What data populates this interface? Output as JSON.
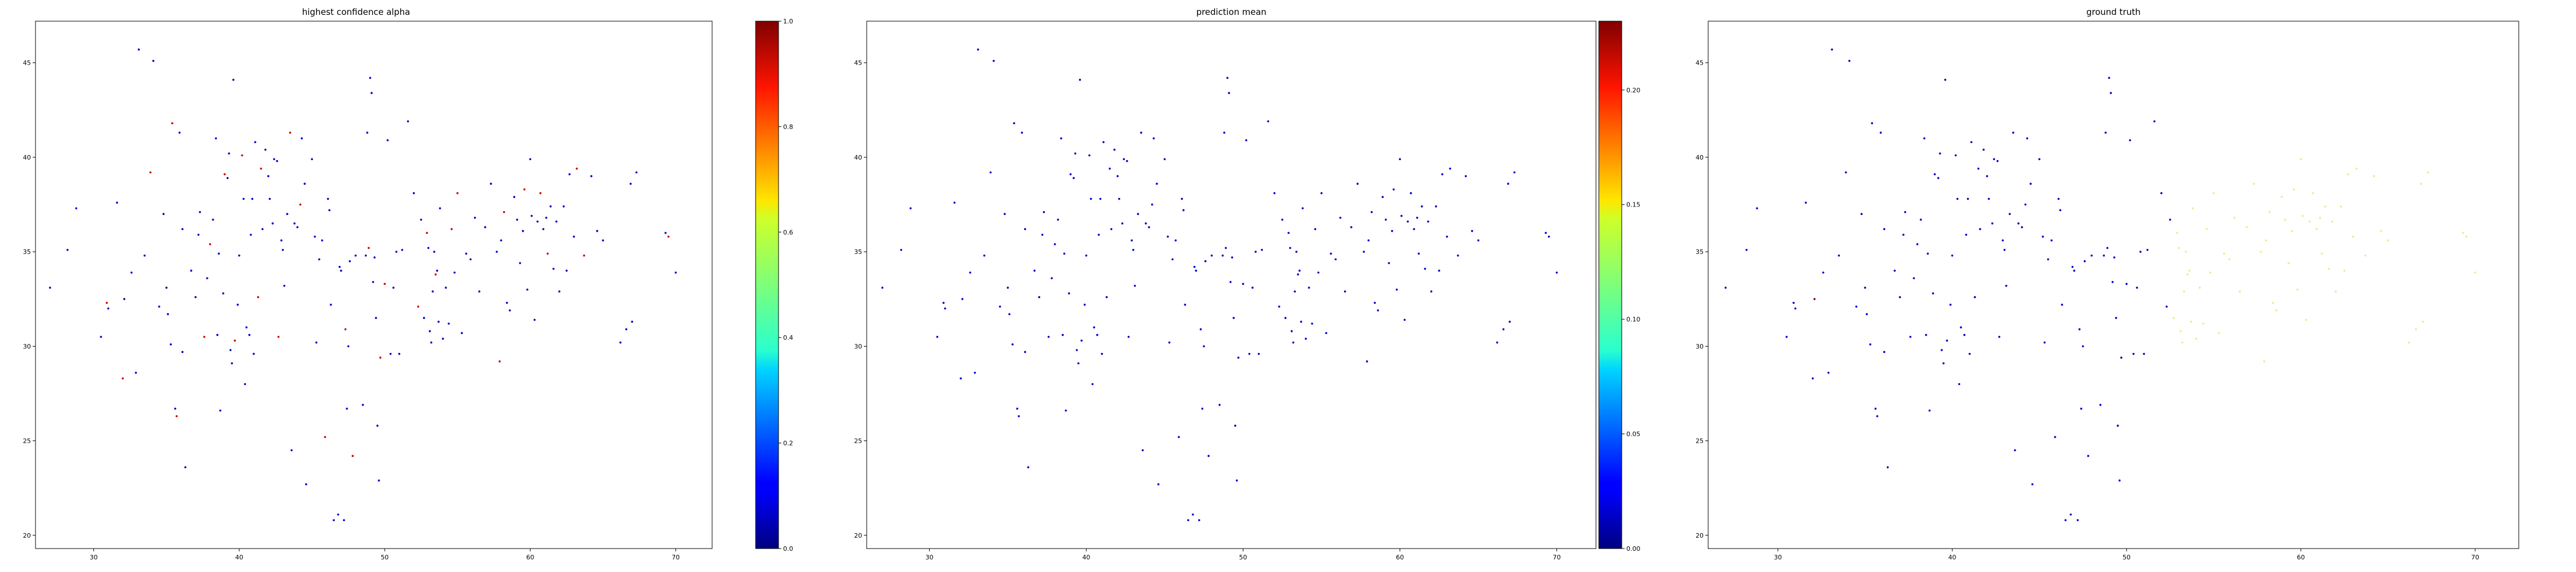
{
  "chart_data": [
    {
      "type": "scatter",
      "title": "highest confidence alpha",
      "xlabel": "",
      "ylabel": "",
      "xlim": [
        26,
        72.5
      ],
      "ylim": [
        19.3,
        47.2
      ],
      "xticks": [
        "30",
        "40",
        "50",
        "60",
        "70"
      ],
      "yticks": [
        "20",
        "25",
        "30",
        "35",
        "40",
        "45"
      ],
      "grid": false,
      "colormap": "jet",
      "colorbar": {
        "min": 0.0,
        "max": 1.0,
        "ticks": [
          "0.0",
          "0.2",
          "0.4",
          "0.6",
          "0.8",
          "1.0"
        ]
      },
      "series": [
        {
          "points": [
            [
              27.0,
              33.1
            ],
            [
              28.2,
              35.1
            ],
            [
              28.8,
              37.3
            ],
            [
              30.5,
              30.5
            ],
            [
              30.9,
              32.3
            ],
            [
              31.0,
              32.0
            ],
            [
              31.6,
              37.6
            ],
            [
              32.0,
              28.3
            ],
            [
              32.1,
              32.5
            ],
            [
              32.6,
              33.9
            ],
            [
              32.9,
              28.6
            ],
            [
              33.1,
              45.7
            ],
            [
              33.5,
              34.8
            ],
            [
              33.9,
              39.2
            ],
            [
              34.1,
              45.1
            ],
            [
              34.5,
              32.1
            ],
            [
              34.8,
              37.0
            ],
            [
              35.0,
              33.1
            ],
            [
              35.1,
              31.7
            ],
            [
              35.3,
              30.1
            ],
            [
              35.4,
              41.8
            ],
            [
              35.6,
              26.7
            ],
            [
              35.7,
              26.3
            ],
            [
              35.9,
              41.3
            ],
            [
              36.1,
              36.2
            ],
            [
              36.1,
              29.7
            ],
            [
              36.3,
              23.6
            ],
            [
              36.7,
              34.0
            ],
            [
              37.0,
              32.6
            ],
            [
              37.2,
              35.9
            ],
            [
              37.3,
              37.1
            ],
            [
              37.6,
              30.5
            ],
            [
              37.8,
              33.6
            ],
            [
              38.0,
              35.4
            ],
            [
              38.2,
              36.7
            ],
            [
              38.4,
              41.0
            ],
            [
              38.5,
              30.6
            ],
            [
              38.6,
              34.9
            ],
            [
              38.7,
              26.6
            ],
            [
              38.9,
              32.8
            ],
            [
              39.0,
              39.1
            ],
            [
              39.2,
              38.9
            ],
            [
              39.3,
              40.2
            ],
            [
              39.4,
              29.8
            ],
            [
              39.5,
              29.1
            ],
            [
              39.6,
              44.1
            ],
            [
              39.7,
              30.3
            ],
            [
              39.9,
              32.2
            ],
            [
              40.0,
              34.8
            ],
            [
              40.2,
              40.1
            ],
            [
              40.3,
              37.8
            ],
            [
              40.4,
              28.0
            ],
            [
              40.5,
              31.0
            ],
            [
              40.7,
              30.6
            ],
            [
              40.8,
              35.9
            ],
            [
              40.9,
              37.8
            ],
            [
              41.0,
              29.6
            ],
            [
              41.1,
              40.8
            ],
            [
              41.3,
              32.6
            ],
            [
              41.5,
              39.4
            ],
            [
              41.6,
              36.2
            ],
            [
              41.8,
              40.4
            ],
            [
              42.0,
              39.0
            ],
            [
              42.1,
              37.8
            ],
            [
              42.3,
              36.5
            ],
            [
              42.4,
              39.9
            ],
            [
              42.6,
              39.8
            ],
            [
              42.7,
              30.5
            ],
            [
              42.9,
              35.6
            ],
            [
              43.0,
              35.1
            ],
            [
              43.1,
              33.2
            ],
            [
              43.3,
              37.0
            ],
            [
              43.5,
              41.3
            ],
            [
              43.6,
              24.5
            ],
            [
              43.8,
              36.5
            ],
            [
              44.0,
              36.3
            ],
            [
              44.2,
              37.5
            ],
            [
              44.3,
              41.0
            ],
            [
              44.5,
              38.6
            ],
            [
              44.6,
              22.7
            ],
            [
              45.0,
              39.9
            ],
            [
              45.2,
              35.8
            ],
            [
              45.3,
              30.2
            ],
            [
              45.5,
              34.6
            ],
            [
              45.7,
              35.6
            ],
            [
              45.9,
              25.2
            ],
            [
              46.1,
              37.8
            ],
            [
              46.2,
              37.2
            ],
            [
              46.3,
              32.2
            ],
            [
              46.5,
              20.8
            ],
            [
              46.8,
              21.1
            ],
            [
              46.9,
              34.2
            ],
            [
              47.0,
              34.0
            ],
            [
              47.2,
              20.8
            ],
            [
              47.3,
              30.9
            ],
            [
              47.4,
              26.7
            ],
            [
              47.5,
              30.0
            ],
            [
              47.6,
              34.5
            ],
            [
              47.8,
              24.2
            ],
            [
              48.0,
              34.8
            ],
            [
              48.5,
              26.9
            ],
            [
              48.7,
              34.8
            ],
            [
              48.8,
              41.3
            ],
            [
              48.9,
              35.2
            ],
            [
              49.0,
              44.2
            ],
            [
              49.1,
              43.4
            ],
            [
              49.2,
              33.4
            ],
            [
              49.3,
              34.7
            ],
            [
              49.4,
              31.5
            ],
            [
              49.5,
              25.8
            ],
            [
              49.6,
              22.9
            ],
            [
              49.7,
              29.4
            ],
            [
              50.0,
              33.3
            ],
            [
              50.2,
              40.9
            ],
            [
              50.4,
              29.6
            ],
            [
              50.6,
              33.1
            ],
            [
              50.8,
              35.0
            ],
            [
              51.0,
              29.6
            ],
            [
              51.2,
              35.1
            ],
            [
              51.6,
              41.9
            ],
            [
              52.0,
              38.1
            ],
            [
              52.3,
              32.1
            ],
            [
              52.5,
              36.7
            ],
            [
              52.7,
              31.5
            ],
            [
              52.9,
              36.0
            ],
            [
              53.0,
              35.2
            ],
            [
              53.1,
              30.8
            ],
            [
              53.2,
              30.2
            ],
            [
              53.3,
              32.9
            ],
            [
              53.4,
              35.0
            ],
            [
              53.5,
              33.8
            ],
            [
              53.6,
              34.0
            ],
            [
              53.7,
              31.3
            ],
            [
              53.8,
              37.3
            ],
            [
              54.0,
              30.4
            ],
            [
              54.2,
              33.1
            ],
            [
              54.4,
              31.2
            ],
            [
              54.6,
              36.2
            ],
            [
              54.8,
              33.9
            ],
            [
              55.0,
              38.1
            ],
            [
              55.3,
              30.7
            ],
            [
              55.6,
              34.9
            ],
            [
              55.9,
              34.6
            ],
            [
              56.2,
              36.8
            ],
            [
              56.5,
              32.9
            ],
            [
              56.9,
              36.3
            ],
            [
              57.3,
              38.6
            ],
            [
              57.7,
              35.0
            ],
            [
              57.9,
              29.2
            ],
            [
              58.0,
              35.6
            ],
            [
              58.2,
              37.1
            ],
            [
              58.4,
              32.3
            ],
            [
              58.6,
              31.9
            ],
            [
              58.9,
              37.9
            ],
            [
              59.1,
              36.7
            ],
            [
              59.3,
              34.4
            ],
            [
              59.5,
              36.1
            ],
            [
              59.6,
              38.3
            ],
            [
              59.8,
              33.0
            ],
            [
              60.0,
              39.9
            ],
            [
              60.1,
              36.9
            ],
            [
              60.3,
              31.4
            ],
            [
              60.5,
              36.6
            ],
            [
              60.7,
              38.1
            ],
            [
              60.9,
              36.2
            ],
            [
              61.1,
              36.8
            ],
            [
              61.2,
              34.9
            ],
            [
              61.4,
              37.4
            ],
            [
              61.6,
              34.1
            ],
            [
              61.8,
              36.6
            ],
            [
              62.0,
              32.9
            ],
            [
              62.3,
              37.4
            ],
            [
              62.5,
              34.0
            ],
            [
              62.7,
              39.1
            ],
            [
              63.0,
              35.8
            ],
            [
              63.2,
              39.4
            ],
            [
              63.7,
              34.8
            ],
            [
              64.2,
              39.0
            ],
            [
              64.6,
              36.1
            ],
            [
              65.0,
              35.6
            ],
            [
              66.2,
              30.2
            ],
            [
              66.6,
              30.9
            ],
            [
              66.9,
              38.6
            ],
            [
              67.3,
              39.2
            ],
            [
              69.5,
              35.8
            ],
            [
              70.0,
              33.9
            ],
            [
              69.3,
              36.0
            ],
            [
              67.0,
              31.3
            ]
          ]
        }
      ]
    },
    {
      "type": "scatter",
      "title": "prediction mean",
      "xlabel": "",
      "ylabel": "",
      "xlim": [
        26,
        72.5
      ],
      "ylim": [
        19.3,
        47.2
      ],
      "xticks": [
        "30",
        "40",
        "50",
        "60",
        "70"
      ],
      "yticks": [
        "20",
        "25",
        "30",
        "35",
        "40",
        "45"
      ],
      "grid": false,
      "colormap": "jet",
      "colorbar": {
        "min": 0.0,
        "max": 0.23,
        "ticks": [
          "0.00",
          "0.05",
          "0.10",
          "0.15",
          "0.20"
        ]
      },
      "series": [
        {
          "points": "same as highest confidence alpha"
        }
      ]
    },
    {
      "type": "scatter",
      "title": "ground truth",
      "xlabel": "",
      "ylabel": "",
      "xlim": [
        26,
        72.5
      ],
      "ylim": [
        19.3,
        47.2
      ],
      "xticks": [
        "30",
        "40",
        "50",
        "60",
        "70"
      ],
      "yticks": [
        "20",
        "25",
        "30",
        "35",
        "40",
        "45"
      ],
      "grid": false,
      "colormap": "jet",
      "series": [
        {
          "points": "same as highest confidence alpha"
        }
      ]
    }
  ],
  "colors": {
    "point_low": "#0000cc",
    "point_dark": "#000080",
    "point_high": "#cc0000",
    "point_yellow": "#f2e98a",
    "point_darkred": "#7f0000"
  }
}
